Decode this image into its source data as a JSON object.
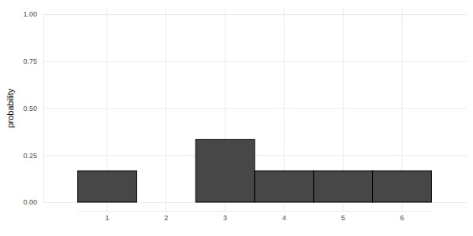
{
  "chart_data": {
    "type": "bar",
    "y_label": "probability",
    "categories": [
      "1",
      "2",
      "3",
      "4",
      "5",
      "6"
    ],
    "values": [
      0.167,
      0,
      0.333,
      0.167,
      0.167,
      0.167
    ],
    "color": "#474747",
    "ylim": [
      0,
      1
    ],
    "yticks": [
      {
        "value": 0,
        "label": "0.00"
      },
      {
        "value": 0.25,
        "label": "0.25"
      },
      {
        "value": 0.5,
        "label": "0.50"
      },
      {
        "value": 0.75,
        "label": "0.75"
      },
      {
        "value": 1,
        "label": "1.00"
      }
    ],
    "grid": true
  }
}
